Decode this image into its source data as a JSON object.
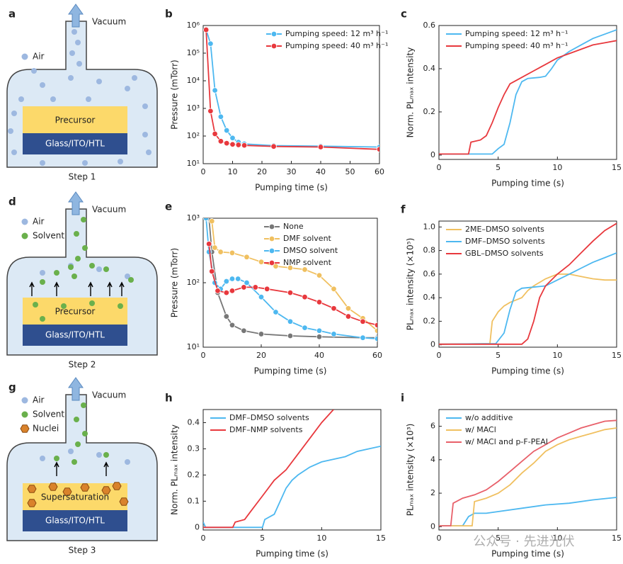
{
  "diagrams": [
    {
      "label": "a",
      "vacuum": "Vacuum",
      "legend": [
        "Air"
      ],
      "layers": [
        "Precursor",
        "Glass/ITO/HTL"
      ],
      "step": "Step 1"
    },
    {
      "label": "d",
      "vacuum": "Vacuum",
      "legend": [
        "Air",
        "Solvent"
      ],
      "layers": [
        "Precursor",
        "Glass/ITO/HTL"
      ],
      "step": "Step 2"
    },
    {
      "label": "g",
      "vacuum": "Vacuum",
      "legend": [
        "Air",
        "Solvent",
        "Nuclei"
      ],
      "layers": [
        "Supersaturation",
        "Glass/ITO/HTL"
      ],
      "step": "Step 3"
    }
  ],
  "watermark": "公众号 · 先进光伏",
  "chart_data": [
    {
      "type": "line",
      "label": "b",
      "xlabel": "Pumping time (s)",
      "ylabel": "Pressure (mTorr)",
      "log_y": true,
      "markers": true,
      "legend": "upper right",
      "xlim": [
        0,
        60
      ],
      "xticks": [
        0,
        10,
        20,
        30,
        40,
        50,
        60
      ],
      "ylim": [
        10,
        1000000
      ],
      "yticks": [
        {
          "value": 10,
          "label": "10¹"
        },
        {
          "value": 100,
          "label": "10²"
        },
        {
          "value": 1000,
          "label": "10³"
        },
        {
          "value": 10000,
          "label": "10⁴"
        },
        {
          "value": 100000,
          "label": "10⁵"
        },
        {
          "value": 1000000,
          "label": "10⁶"
        }
      ],
      "series": [
        {
          "name": "Pumping speed: 12 m³ h⁻¹",
          "color": "#4db8f0",
          "x": [
            1,
            2.5,
            4,
            6,
            8,
            10,
            12,
            14,
            24,
            40,
            60
          ],
          "values": [
            700000,
            220000,
            4500,
            500,
            160,
            85,
            60,
            52,
            45,
            43,
            40
          ]
        },
        {
          "name": "Pumping speed: 40 m³ h⁻¹",
          "color": "#e8383d",
          "x": [
            1,
            2.5,
            4,
            6,
            8,
            10,
            12,
            14,
            24,
            40,
            60
          ],
          "values": [
            700000,
            800,
            120,
            65,
            55,
            50,
            48,
            46,
            42,
            40,
            33
          ]
        }
      ]
    },
    {
      "type": "line",
      "label": "c",
      "xlabel": "Pumping time (s)",
      "ylabel": "Norm. PLₘₐₓ intensity",
      "legend": "upper left",
      "xlim": [
        0,
        15
      ],
      "xticks": [
        0,
        5,
        10,
        15
      ],
      "ylim": [
        -0.02,
        0.6
      ],
      "yticks": [
        0,
        0.2,
        0.4,
        0.6
      ],
      "series": [
        {
          "name": "Pumping speed: 12 m³ h⁻¹",
          "color": "#4db8f0",
          "x": [
            0,
            4.5,
            5,
            5.5,
            6,
            6.5,
            7,
            7.5,
            8.5,
            9,
            9.5,
            10,
            11,
            12,
            13,
            14,
            15
          ],
          "values": [
            0.005,
            0.005,
            0.03,
            0.05,
            0.15,
            0.28,
            0.34,
            0.355,
            0.36,
            0.365,
            0.4,
            0.44,
            0.48,
            0.51,
            0.54,
            0.56,
            0.58
          ]
        },
        {
          "name": "Pumping speed: 40 m³ h⁻¹",
          "color": "#e8383d",
          "x": [
            0,
            2.5,
            2.7,
            3.5,
            4,
            4.5,
            5,
            5.5,
            6,
            7,
            8,
            9,
            10,
            11,
            12,
            13,
            14,
            15
          ],
          "values": [
            0.005,
            0.005,
            0.06,
            0.07,
            0.09,
            0.15,
            0.22,
            0.28,
            0.33,
            0.36,
            0.39,
            0.42,
            0.45,
            0.47,
            0.49,
            0.51,
            0.52,
            0.53
          ]
        }
      ]
    },
    {
      "type": "line",
      "label": "e",
      "xlabel": "Pumping time (s)",
      "ylabel": "Pressure (mTorr)",
      "log_y": true,
      "markers": true,
      "legend": "upper right",
      "xlim": [
        0,
        60
      ],
      "xticks": [
        0,
        20,
        40,
        60
      ],
      "ylim": [
        10,
        1000
      ],
      "yticks": [
        {
          "value": 10,
          "label": "10¹"
        },
        {
          "value": 100,
          "label": "10²"
        },
        {
          "value": 1000,
          "label": "10³"
        }
      ],
      "series": [
        {
          "name": "None",
          "color": "#777777",
          "x": [
            2,
            3,
            5,
            8,
            10,
            14,
            20,
            30,
            40,
            55,
            60
          ],
          "values": [
            1000,
            300,
            70,
            30,
            22,
            18,
            16,
            15,
            14.5,
            14,
            14
          ]
        },
        {
          "name": "DMF solvent",
          "color": "#f0c060",
          "x": [
            3,
            4,
            6,
            10,
            15,
            20,
            25,
            30,
            35,
            40,
            45,
            50,
            55,
            60
          ],
          "values": [
            900,
            350,
            300,
            290,
            250,
            210,
            180,
            170,
            160,
            130,
            80,
            40,
            28,
            18
          ]
        },
        {
          "name": "DMSO solvent",
          "color": "#4db8f0",
          "x": [
            1,
            2,
            4,
            6,
            8,
            10,
            12,
            15,
            20,
            25,
            30,
            35,
            40,
            45,
            55,
            60
          ],
          "values": [
            1000,
            300,
            100,
            80,
            105,
            115,
            115,
            100,
            60,
            35,
            25,
            20,
            18,
            16,
            14,
            13.5
          ]
        },
        {
          "name": "NMP solvent",
          "color": "#e8383d",
          "x": [
            2,
            3,
            5,
            8,
            10,
            14,
            18,
            22,
            30,
            35,
            40,
            45,
            50,
            55,
            60
          ],
          "values": [
            400,
            150,
            75,
            70,
            75,
            85,
            85,
            80,
            70,
            60,
            50,
            40,
            30,
            25,
            22
          ]
        }
      ]
    },
    {
      "type": "line",
      "label": "f",
      "xlabel": "Pumping time (s)",
      "ylabel": "PLₘₐₓ intensity (×10⁵)",
      "legend": "upper left",
      "xlim": [
        0,
        15
      ],
      "xticks": [
        0,
        5,
        10,
        15
      ],
      "ylim": [
        -0.02,
        1.05
      ],
      "yticks": [
        0,
        0.2,
        0.4,
        0.6,
        0.8,
        {
          "value": 1,
          "label": "1.0"
        }
      ],
      "series": [
        {
          "name": "2ME–DMSO solvents",
          "color": "#f0c060",
          "x": [
            0,
            4.3,
            4.5,
            5,
            5.5,
            6,
            7,
            7.5,
            8,
            9,
            10,
            11,
            12,
            13,
            14,
            15
          ],
          "values": [
            0.005,
            0.01,
            0.2,
            0.28,
            0.33,
            0.36,
            0.4,
            0.46,
            0.5,
            0.56,
            0.6,
            0.6,
            0.58,
            0.56,
            0.55,
            0.55
          ]
        },
        {
          "name": "DMF–DMSO solvents",
          "color": "#4db8f0",
          "x": [
            0,
            4.8,
            5.5,
            6,
            6.5,
            7,
            8,
            9,
            10,
            11,
            12,
            13,
            14,
            15
          ],
          "values": [
            0.005,
            0.01,
            0.1,
            0.3,
            0.45,
            0.48,
            0.49,
            0.5,
            0.55,
            0.6,
            0.65,
            0.7,
            0.74,
            0.78
          ]
        },
        {
          "name": "GBL–DMSO solvents",
          "color": "#e8383d",
          "x": [
            0,
            7,
            7.5,
            8,
            8.5,
            9,
            10,
            11,
            12,
            13,
            14,
            15
          ],
          "values": [
            0.005,
            0.005,
            0.05,
            0.2,
            0.4,
            0.5,
            0.6,
            0.68,
            0.78,
            0.88,
            0.97,
            1.03
          ]
        }
      ]
    },
    {
      "type": "line",
      "label": "h",
      "xlabel": "Pumping time (s)",
      "ylabel": "Norm. PLₘₐₓ intensity",
      "legend": "upper left",
      "xlim": [
        0,
        15
      ],
      "xticks": [
        0,
        5,
        10,
        15
      ],
      "ylim": [
        -0.01,
        0.45
      ],
      "yticks": [
        0,
        0.1,
        0.2,
        0.3,
        0.4
      ],
      "series": [
        {
          "name": "DMF–DMSO solvents",
          "color": "#4db8f0",
          "x": [
            0,
            0.2,
            5,
            5.2,
            6,
            6.5,
            7,
            7.5,
            8,
            9,
            10,
            12,
            13,
            14,
            15
          ],
          "values": [
            0.02,
            0,
            0,
            0.03,
            0.05,
            0.1,
            0.15,
            0.18,
            0.2,
            0.23,
            0.25,
            0.27,
            0.29,
            0.3,
            0.31
          ]
        },
        {
          "name": "DMF–NMP solvents",
          "color": "#e8383d",
          "x": [
            0,
            2.5,
            2.7,
            3.5,
            4,
            5,
            6,
            7,
            8,
            9,
            10,
            11
          ],
          "values": [
            0,
            0,
            0.02,
            0.03,
            0.06,
            0.12,
            0.18,
            0.22,
            0.28,
            0.34,
            0.4,
            0.45
          ]
        }
      ]
    },
    {
      "type": "line",
      "label": "i",
      "xlabel": "Pumping time (s)",
      "ylabel": "PLₘₐₓ intensity (×10³)",
      "legend": "upper left",
      "xlim": [
        0,
        15
      ],
      "xticks": [
        0,
        5,
        10,
        15
      ],
      "ylim": [
        -0.2,
        7
      ],
      "yticks": [
        0,
        2,
        4,
        6
      ],
      "series": [
        {
          "name": "w/o additive",
          "color": "#4db8f0",
          "x": [
            0,
            2,
            2.5,
            3,
            4,
            5,
            7,
            9,
            11,
            13,
            15
          ],
          "values": [
            0.05,
            0.05,
            0.6,
            0.8,
            0.8,
            0.9,
            1.1,
            1.3,
            1.4,
            1.6,
            1.75
          ]
        },
        {
          "name": "w/ MACl",
          "color": "#f0c060",
          "x": [
            0,
            2.8,
            3,
            4,
            5,
            6,
            7,
            8,
            9,
            10,
            11,
            12,
            13,
            14,
            15
          ],
          "values": [
            0.05,
            0.05,
            1.5,
            1.7,
            2.0,
            2.5,
            3.2,
            3.8,
            4.5,
            4.9,
            5.2,
            5.4,
            5.6,
            5.8,
            5.9
          ]
        },
        {
          "name": "w/ MACl and p-F-PEAI",
          "color": "#e8606a",
          "x": [
            0,
            1,
            1.2,
            2,
            3,
            4,
            5,
            6,
            7,
            8,
            9,
            10,
            11,
            12,
            13,
            14,
            15
          ],
          "values": [
            0.05,
            0.05,
            1.4,
            1.7,
            1.9,
            2.2,
            2.7,
            3.3,
            3.9,
            4.5,
            4.9,
            5.3,
            5.6,
            5.9,
            6.1,
            6.3,
            6.35
          ]
        }
      ]
    }
  ]
}
